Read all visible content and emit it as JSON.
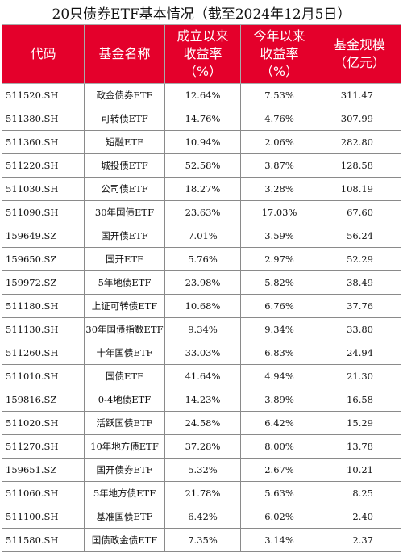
{
  "title": "20只债券ETF基本情况（截至2024年12月5日）",
  "headers": {
    "code": "代码",
    "name": "基金名称",
    "since_inception": [
      "成立以来",
      "收益率",
      "（%）"
    ],
    "ytd": [
      "今年以来",
      "收益率",
      "（%）"
    ],
    "scale": [
      "基金规模",
      "（亿元）"
    ]
  },
  "rows": [
    {
      "code": "511520.SH",
      "name": "政金债券ETF",
      "since": "12.64%",
      "ytd": "7.53%",
      "scale": "311.47"
    },
    {
      "code": "511380.SH",
      "name": "可转债ETF",
      "since": "14.76%",
      "ytd": "4.76%",
      "scale": "307.99"
    },
    {
      "code": "511360.SH",
      "name": "短融ETF",
      "since": "10.94%",
      "ytd": "2.06%",
      "scale": "282.80"
    },
    {
      "code": "511220.SH",
      "name": "城投债ETF",
      "since": "52.58%",
      "ytd": "3.87%",
      "scale": "128.58"
    },
    {
      "code": "511030.SH",
      "name": "公司债ETF",
      "since": "18.27%",
      "ytd": "3.28%",
      "scale": "108.19"
    },
    {
      "code": "511090.SH",
      "name": "30年国债ETF",
      "since": "23.63%",
      "ytd": "17.03%",
      "scale": "67.60"
    },
    {
      "code": "159649.SZ",
      "name": "国开债ETF",
      "since": "7.01%",
      "ytd": "3.59%",
      "scale": "56.24"
    },
    {
      "code": "159650.SZ",
      "name": "国开ETF",
      "since": "5.76%",
      "ytd": "2.97%",
      "scale": "52.29"
    },
    {
      "code": "159972.SZ",
      "name": "5年地债ETF",
      "since": "23.98%",
      "ytd": "5.82%",
      "scale": "38.49"
    },
    {
      "code": "511180.SH",
      "name": "上证可转债ETF",
      "since": "10.68%",
      "ytd": "6.76%",
      "scale": "37.76"
    },
    {
      "code": "511130.SH",
      "name": "30年国债指数ETF",
      "since": "9.34%",
      "ytd": "9.34%",
      "scale": "33.80"
    },
    {
      "code": "511260.SH",
      "name": "十年国债ETF",
      "since": "33.03%",
      "ytd": "6.83%",
      "scale": "24.94"
    },
    {
      "code": "511010.SH",
      "name": "国债ETF",
      "since": "41.64%",
      "ytd": "4.94%",
      "scale": "21.30"
    },
    {
      "code": "159816.SZ",
      "name": "0-4地债ETF",
      "since": "14.23%",
      "ytd": "3.89%",
      "scale": "16.58"
    },
    {
      "code": "511020.SH",
      "name": "活跃国债ETF",
      "since": "24.58%",
      "ytd": "6.42%",
      "scale": "15.29"
    },
    {
      "code": "511270.SH",
      "name": "10年地方债ETF",
      "since": "37.28%",
      "ytd": "8.00%",
      "scale": "13.78"
    },
    {
      "code": "159651.SZ",
      "name": "国开债券ETF",
      "since": "5.32%",
      "ytd": "2.67%",
      "scale": "10.21"
    },
    {
      "code": "511060.SH",
      "name": "5年地方债ETF",
      "since": "21.78%",
      "ytd": "5.63%",
      "scale": "8.25"
    },
    {
      "code": "511100.SH",
      "name": "基准国债ETF",
      "since": "6.42%",
      "ytd": "6.02%",
      "scale": "2.40"
    },
    {
      "code": "511580.SH",
      "name": "国债政金债ETF",
      "since": "7.35%",
      "ytd": "3.14%",
      "scale": "2.37"
    }
  ],
  "colors": {
    "header_bg": "#e4002b",
    "header_text": "#ffffff",
    "grid": "#8a8a8a"
  }
}
